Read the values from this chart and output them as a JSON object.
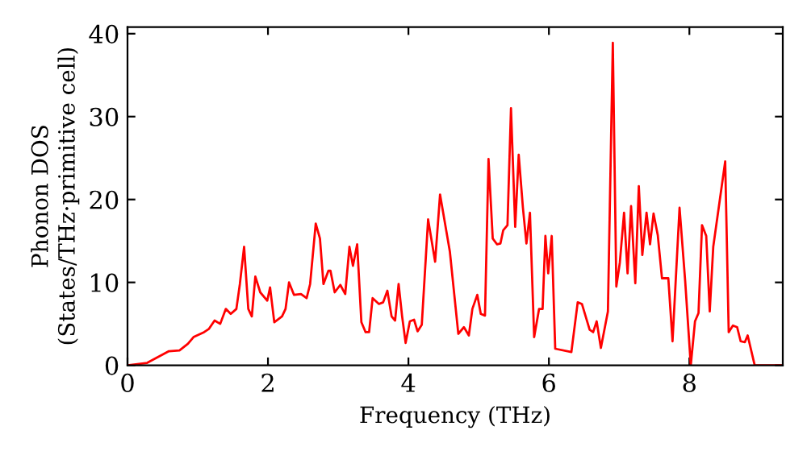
{
  "chart_data": {
    "type": "line",
    "xlabel": "Frequency (THz)",
    "ylabel": "Phonon DOS\n(States/THz·primitive cell)",
    "xlim": [
      0,
      9.33
    ],
    "ylim": [
      0,
      40.8
    ],
    "xticks": [
      0,
      2,
      4,
      6,
      8
    ],
    "yticks": [
      0,
      10,
      20,
      30,
      40
    ],
    "grid": false,
    "marker": "none",
    "line_style": "solid",
    "series": [
      {
        "color": "#ff0000",
        "x": [
          0,
          0.28,
          0.59,
          0.74,
          0.86,
          0.94,
          1.09,
          1.16,
          1.24,
          1.32,
          1.4,
          1.47,
          1.55,
          1.6,
          1.66,
          1.72,
          1.77,
          1.82,
          1.89,
          1.99,
          2.03,
          2.09,
          2.2,
          2.25,
          2.3,
          2.37,
          2.47,
          2.55,
          2.6,
          2.68,
          2.74,
          2.79,
          2.86,
          2.89,
          2.95,
          3.03,
          3.1,
          3.16,
          3.21,
          3.27,
          3.33,
          3.39,
          3.44,
          3.49,
          3.58,
          3.64,
          3.7,
          3.76,
          3.81,
          3.86,
          3.91,
          3.96,
          4.02,
          4.08,
          4.13,
          4.19,
          4.28,
          4.38,
          4.45,
          4.59,
          4.71,
          4.79,
          4.86,
          4.91,
          4.98,
          5.03,
          5.09,
          5.14,
          5.2,
          5.26,
          5.31,
          5.35,
          5.41,
          5.46,
          5.52,
          5.57,
          5.63,
          5.68,
          5.73,
          5.79,
          5.86,
          5.91,
          5.95,
          5.99,
          6.04,
          6.09,
          6.32,
          6.41,
          6.47,
          6.58,
          6.63,
          6.68,
          6.74,
          6.84,
          6.91,
          6.96,
          7.01,
          7.07,
          7.12,
          7.17,
          7.23,
          7.28,
          7.33,
          7.39,
          7.44,
          7.49,
          7.55,
          7.61,
          7.7,
          7.76,
          7.86,
          7.94,
          8.02,
          8.08,
          8.13,
          8.18,
          8.24,
          8.29,
          8.34,
          8.51,
          8.56,
          8.62,
          8.68,
          8.73,
          8.79,
          8.83,
          8.93,
          9.33
        ],
        "values": [
          0,
          0.3,
          1.7,
          1.8,
          2.6,
          3.4,
          4.0,
          4.4,
          5.4,
          5.0,
          6.8,
          6.2,
          6.8,
          9.8,
          14.3,
          6.8,
          5.9,
          10.7,
          8.8,
          7.8,
          9.4,
          5.2,
          5.9,
          6.8,
          10.0,
          8.5,
          8.6,
          8.1,
          9.8,
          17.1,
          15.3,
          9.8,
          11.4,
          11.4,
          8.8,
          9.7,
          8.6,
          14.3,
          12.0,
          14.6,
          5.2,
          4.0,
          4.0,
          8.1,
          7.4,
          7.6,
          9.0,
          5.9,
          5.4,
          9.8,
          5.9,
          2.7,
          5.3,
          5.5,
          4.1,
          4.9,
          17.6,
          12.5,
          20.6,
          13.7,
          3.8,
          4.6,
          3.6,
          6.8,
          8.5,
          6.2,
          6.0,
          24.9,
          15.3,
          14.6,
          14.7,
          16.3,
          16.9,
          31.0,
          16.7,
          25.4,
          19.0,
          14.7,
          18.4,
          3.4,
          6.8,
          6.8,
          15.6,
          11.1,
          15.6,
          2.0,
          1.6,
          7.6,
          7.4,
          4.3,
          4.0,
          5.3,
          2.1,
          6.5,
          38.9,
          9.5,
          12.4,
          18.4,
          11.1,
          19.2,
          9.9,
          21.6,
          13.3,
          18.4,
          14.6,
          18.3,
          15.7,
          10.5,
          10.5,
          2.9,
          19.0,
          10.2,
          0,
          5.3,
          6.3,
          16.9,
          15.6,
          6.5,
          14.3,
          24.6,
          4.0,
          4.8,
          4.6,
          2.9,
          2.8,
          3.6,
          0,
          0
        ]
      }
    ]
  }
}
